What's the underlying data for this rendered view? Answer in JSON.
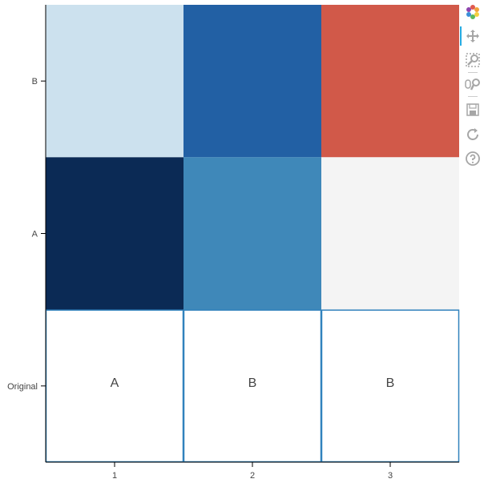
{
  "chart_data": {
    "type": "heatmap",
    "x_categories": [
      "1",
      "2",
      "3"
    ],
    "y_categories": [
      "Original",
      "A",
      "B"
    ],
    "cells": [
      {
        "x": "1",
        "y": "B",
        "color": "#cce1ee"
      },
      {
        "x": "2",
        "y": "B",
        "color": "#2260a4"
      },
      {
        "x": "3",
        "y": "B",
        "color": "#d15949"
      },
      {
        "x": "1",
        "y": "A",
        "color": "#0b2a55"
      },
      {
        "x": "2",
        "y": "A",
        "color": "#3f88b9"
      },
      {
        "x": "3",
        "y": "A",
        "color": "#f4f4f4"
      },
      {
        "x": "1",
        "y": "Original",
        "color": "#ffffff",
        "text": "A"
      },
      {
        "x": "2",
        "y": "Original",
        "color": "#ffffff",
        "text": "B"
      },
      {
        "x": "3",
        "y": "Original",
        "color": "#ffffff",
        "text": "B"
      }
    ],
    "original_cell_border_color": "#3182bd",
    "title": "",
    "xlabel": "",
    "ylabel": "",
    "grid": false,
    "legend": "none"
  },
  "toolbar": {
    "tools": [
      {
        "name": "bokeh-logo-icon",
        "interactable": true
      },
      {
        "name": "pan-tool-icon",
        "interactable": true,
        "active": true
      },
      {
        "name": "box-zoom-tool-icon",
        "interactable": true
      },
      {
        "name": "wheel-zoom-tool-icon",
        "interactable": true
      },
      {
        "name": "save-tool-icon",
        "interactable": true
      },
      {
        "name": "reset-tool-icon",
        "interactable": true
      },
      {
        "name": "help-tool-icon",
        "interactable": true
      }
    ]
  }
}
